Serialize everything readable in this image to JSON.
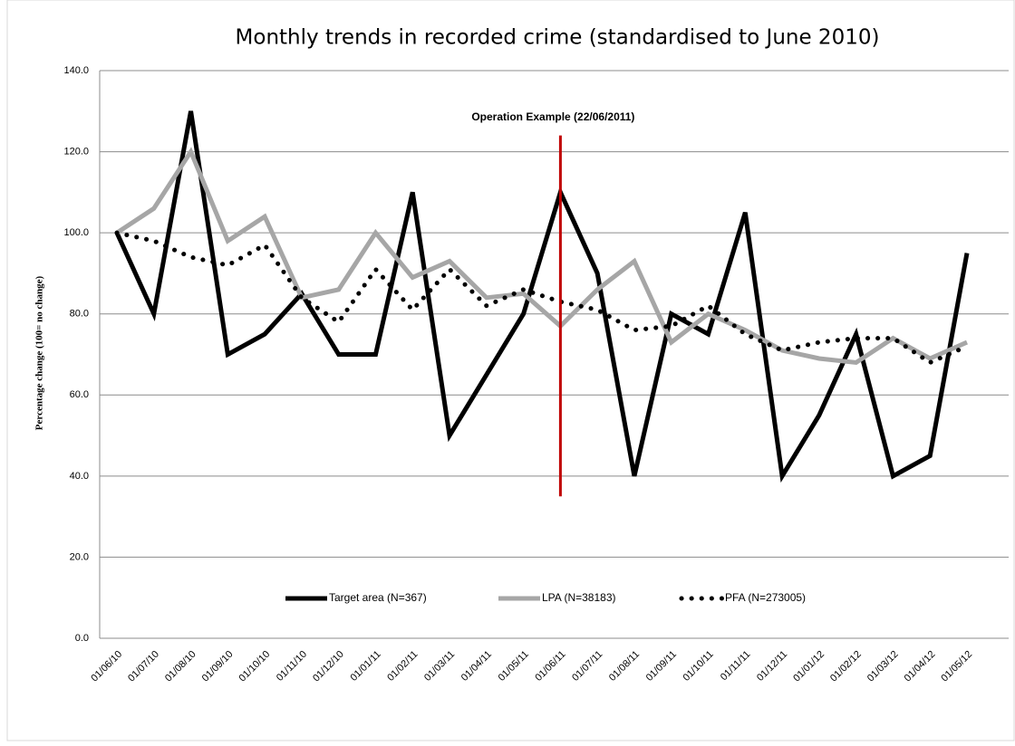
{
  "chart_data": {
    "type": "line",
    "title": "Monthly trends in recorded crime (standardised to June 2010)",
    "y_label": "Percentage change  (100= no change)",
    "categories": [
      "01/06/10",
      "01/07/10",
      "01/08/10",
      "01/09/10",
      "01/10/10",
      "01/11/10",
      "01/12/10",
      "01/01/11",
      "01/02/11",
      "01/03/11",
      "01/04/11",
      "01/05/11",
      "01/06/11",
      "01/07/11",
      "01/08/11",
      "01/09/11",
      "01/10/11",
      "01/11/11",
      "01/12/11",
      "01/01/12",
      "01/02/12",
      "01/03/12",
      "01/04/12",
      "01/05/12"
    ],
    "series": [
      {
        "name": "Target area (N=367)",
        "color": "#000000",
        "style": "solid",
        "values": [
          100,
          80,
          130,
          70,
          75,
          85,
          70,
          70,
          110,
          50,
          65,
          80,
          110,
          90,
          40,
          80,
          75,
          105,
          40,
          55,
          75,
          40,
          45,
          95
        ]
      },
      {
        "name": "LPA (N=38183)",
        "color": "#a6a6a6",
        "style": "solid",
        "values": [
          100,
          106,
          120,
          98,
          104,
          84,
          86,
          100,
          89,
          93,
          84,
          85,
          77,
          86,
          93,
          73,
          80,
          76,
          71,
          69,
          68,
          74,
          69,
          73
        ]
      },
      {
        "name": "PFA (N=273005)",
        "color": "#000000",
        "style": "dotted",
        "values": [
          100,
          98,
          94,
          92,
          97,
          84,
          78,
          91,
          81,
          91,
          82,
          86,
          83,
          81,
          76,
          77,
          82,
          75,
          71,
          73,
          74,
          74,
          68,
          72
        ]
      }
    ],
    "annotation": {
      "text": "Operation Example (22/06/2011)",
      "category_index": 12,
      "y_range": [
        35,
        124
      ],
      "color": "#c00000"
    },
    "ylim": [
      0,
      140
    ],
    "yticks": [
      {
        "value": 0,
        "label": "0.0"
      },
      {
        "value": 20,
        "label": "20.0"
      },
      {
        "value": 40,
        "label": "40.0"
      },
      {
        "value": 60,
        "label": "60.0"
      },
      {
        "value": 80,
        "label": "80.0"
      },
      {
        "value": 100,
        "label": "100.0"
      },
      {
        "value": 120,
        "label": "120.0"
      },
      {
        "value": 140,
        "label": "140.0"
      }
    ],
    "grid": true,
    "legend": "bottom"
  }
}
